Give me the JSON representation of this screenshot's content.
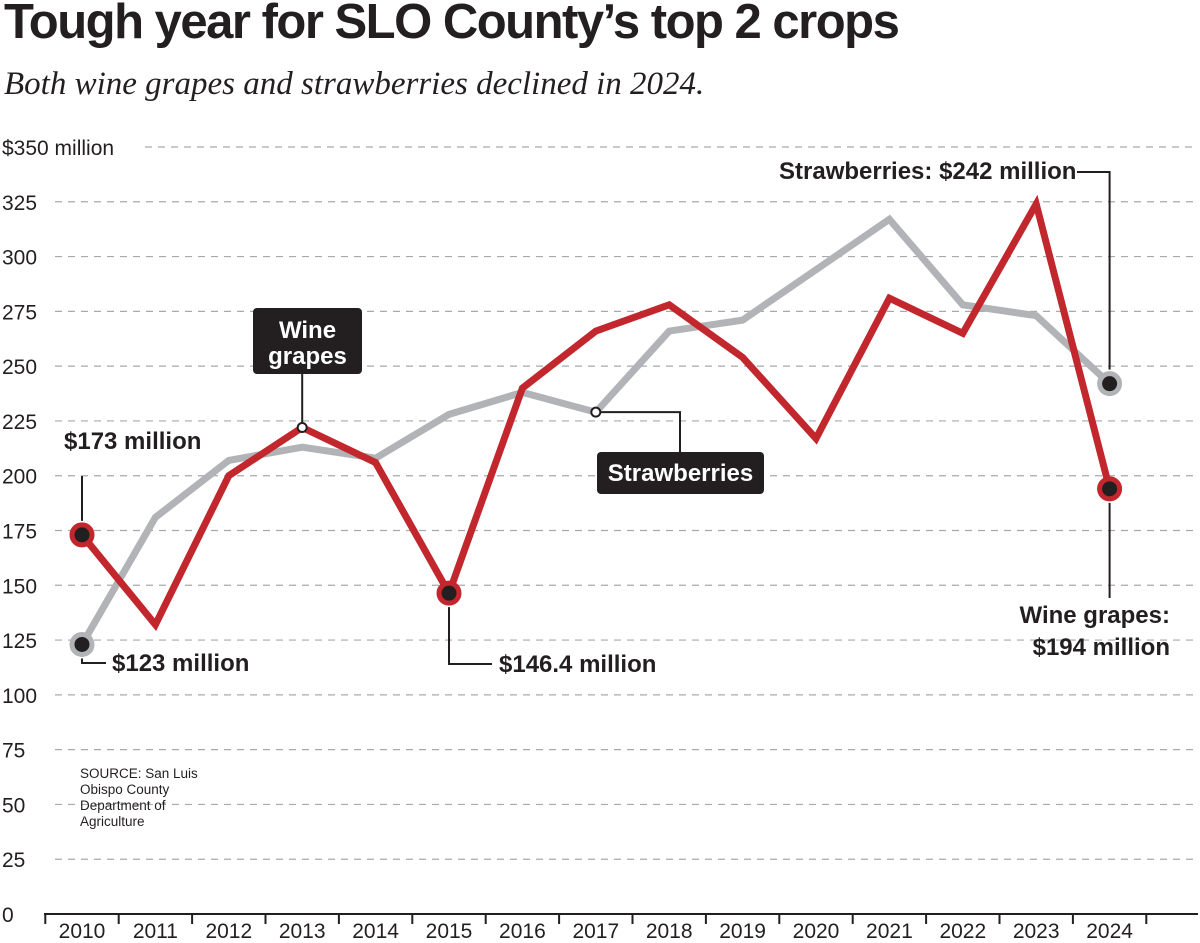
{
  "title": "Tough year for SLO County’s top 2 crops",
  "subtitle": "Both wine grapes and strawberries declined in 2024.",
  "source": "SOURCE: San Luis Obispo County Department of Agriculture",
  "chart_data": {
    "type": "line",
    "x": [
      "2010",
      "2011",
      "2012",
      "2013",
      "2014",
      "2015",
      "2016",
      "2017",
      "2018",
      "2019",
      "2020",
      "2021",
      "2022",
      "2023",
      "2024"
    ],
    "ylim": [
      0,
      350
    ],
    "yticks": [
      "$350 million",
      "325",
      "300",
      "275",
      "250",
      "225",
      "200",
      "175",
      "150",
      "125",
      "100",
      "75",
      "50",
      "25",
      "0"
    ],
    "ytick_values": [
      350,
      325,
      300,
      275,
      250,
      225,
      200,
      175,
      150,
      125,
      100,
      75,
      50,
      25,
      0
    ],
    "grid": true,
    "series": [
      {
        "name": "Strawberries",
        "color": "#b1b3b6",
        "values": [
          123,
          181,
          207,
          213,
          208,
          228,
          238,
          229,
          266,
          271,
          294,
          317,
          278,
          273,
          242
        ]
      },
      {
        "name": "Wine grapes",
        "color": "#c1272d",
        "values": [
          173,
          132,
          200,
          222,
          206,
          146.4,
          240,
          266,
          278,
          254,
          217,
          281,
          265,
          324,
          194
        ]
      }
    ],
    "annotations": {
      "grapes_2010": "$173 million",
      "straw_2010": "$123 million",
      "grapes_2015": "$146.4 million",
      "straw_2024": "Strawberries: $242 million",
      "grapes_2024_line1": "Wine grapes:",
      "grapes_2024_line2": "$194 million",
      "grapes_label_line1": "Wine",
      "grapes_label_line2": "grapes",
      "straw_label": "Strawberries"
    }
  }
}
